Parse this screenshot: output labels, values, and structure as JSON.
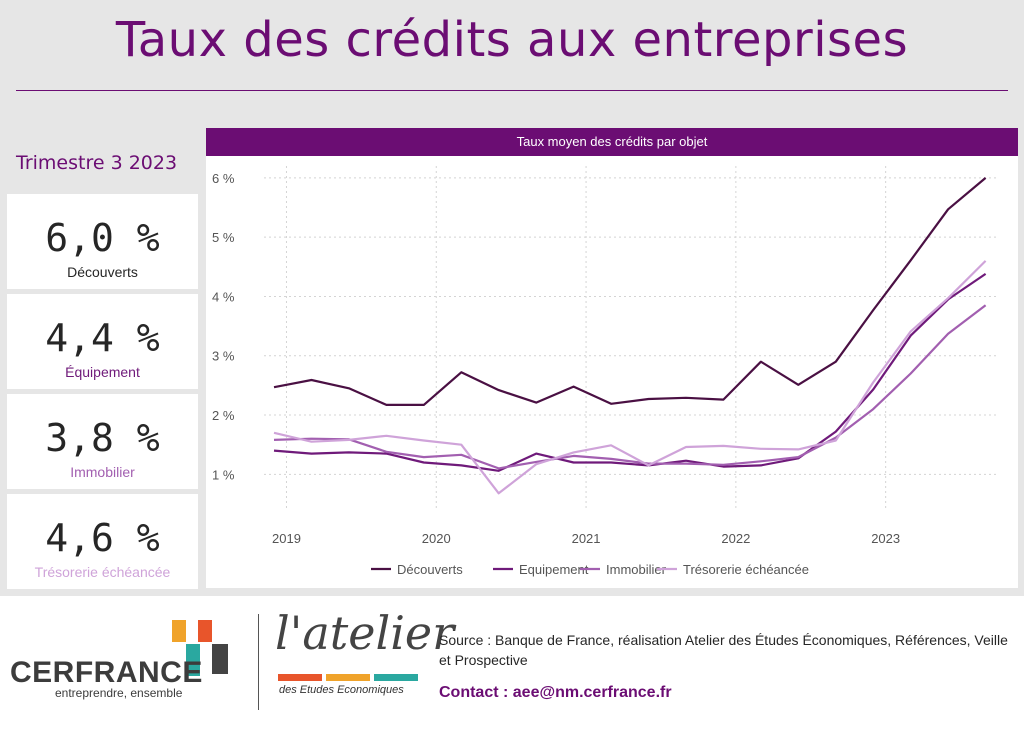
{
  "page": {
    "title": "Taux des crédits aux entreprises",
    "quarter": "Trimestre 3 2023"
  },
  "kpis": [
    {
      "value": "6,0 %",
      "label": "Découverts",
      "color": "#4a1043"
    },
    {
      "value": "4,4 %",
      "label": "Équipement",
      "color": "#6f1a7a"
    },
    {
      "value": "3,8 %",
      "label": "Immobilier",
      "color": "#a25fb0"
    },
    {
      "value": "4,6 %",
      "label": "Trésorerie échéancée",
      "color": "#cfa3d9"
    }
  ],
  "chart_header": "Taux moyen des crédits par objet",
  "chart_data": {
    "type": "line",
    "title": "Taux moyen des crédits par objet",
    "xlabel": "",
    "ylabel": "",
    "x": [
      2018.917,
      2019.167,
      2019.417,
      2019.667,
      2019.917,
      2020.167,
      2020.417,
      2020.667,
      2020.917,
      2021.167,
      2021.417,
      2021.667,
      2021.917,
      2022.167,
      2022.417,
      2022.667,
      2022.917,
      2023.167,
      2023.417,
      2023.667
    ],
    "xticks": [
      2019,
      2020,
      2021,
      2022,
      2023
    ],
    "xtick_labels": [
      "2019",
      "2020",
      "2021",
      "2022",
      "2023"
    ],
    "xlim": [
      2018.85,
      2023.75
    ],
    "yticks": [
      1,
      2,
      3,
      4,
      5,
      6
    ],
    "ytick_labels": [
      "1 %",
      "2 %",
      "3 %",
      "4 %",
      "5 %",
      "6 %"
    ],
    "ylim": [
      0.55,
      6.2
    ],
    "grid": true,
    "legend_position": "bottom",
    "series": [
      {
        "name": "Découverts",
        "color": "#4a1043",
        "values": [
          2.47,
          2.59,
          2.45,
          2.17,
          2.17,
          2.72,
          2.42,
          2.21,
          2.48,
          2.19,
          2.27,
          2.29,
          2.26,
          2.9,
          2.51,
          2.9,
          3.77,
          4.61,
          5.47,
          6.0
        ]
      },
      {
        "name": "Equipement",
        "color": "#6f1a7a",
        "values": [
          1.4,
          1.35,
          1.37,
          1.35,
          1.2,
          1.15,
          1.06,
          1.35,
          1.2,
          1.2,
          1.15,
          1.23,
          1.13,
          1.15,
          1.27,
          1.72,
          2.43,
          3.34,
          3.95,
          4.38
        ]
      },
      {
        "name": "Immobilier",
        "color": "#a25fb0",
        "values": [
          1.58,
          1.6,
          1.59,
          1.38,
          1.29,
          1.33,
          1.1,
          1.21,
          1.31,
          1.26,
          1.18,
          1.18,
          1.16,
          1.22,
          1.29,
          1.62,
          2.1,
          2.7,
          3.37,
          3.85
        ]
      },
      {
        "name": "Trésorerie échéancée",
        "color": "#cfa3d9",
        "values": [
          1.7,
          1.55,
          1.58,
          1.65,
          1.57,
          1.5,
          0.68,
          1.17,
          1.37,
          1.49,
          1.15,
          1.46,
          1.48,
          1.43,
          1.42,
          1.57,
          2.55,
          3.41,
          3.97,
          4.6
        ]
      }
    ]
  },
  "footer": {
    "logo_cerfrance": "CERFRANCE",
    "logo_tagline": "entreprendre, ensemble",
    "logo_atelier": "l'atelier",
    "logo_atelier_sub": "des Etudes Economiques",
    "source": "Source : Banque de France, réalisation Atelier des Études Économiques, Références, Veille et Prospective",
    "contact": "Contact : aee@nm.cerfrance.fr",
    "brand_colors": [
      "#f0a32a",
      "#e8552b",
      "#2aa8a0",
      "#444444"
    ]
  }
}
